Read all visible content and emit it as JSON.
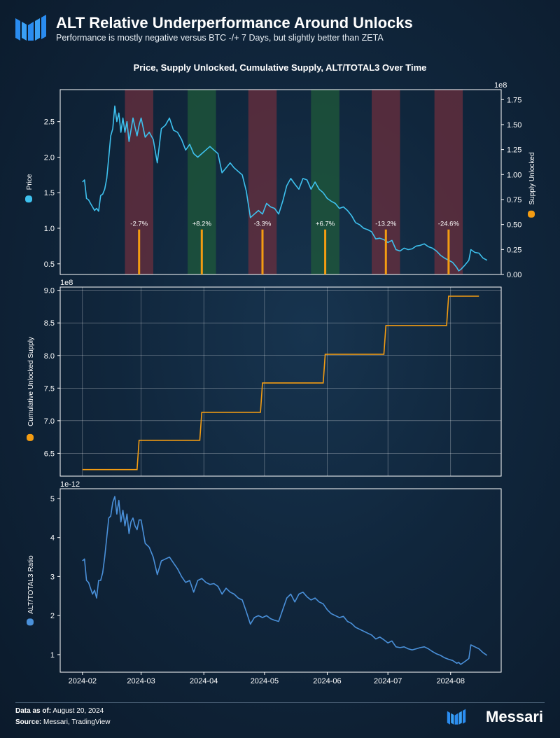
{
  "header": {
    "title": "ALT Relative Underperformance Around Unlocks",
    "subtitle": "Performance is mostly negative versus BTC -/+ 7 Days, but slightly better than ZETA"
  },
  "footer": {
    "data_as_of_label": "Data as of:",
    "data_as_of_value": "August 20, 2024",
    "source_label": "Source:",
    "source_value": "Messari, TradingView",
    "brand": "Messari"
  },
  "colors": {
    "price": "#3ec1ee",
    "supply": "#f39c12",
    "ratio": "#4a90d9",
    "band_red": "#6b2f3d",
    "band_green": "#1f5a3a"
  },
  "chart_data": [
    {
      "type": "line",
      "title": "Price, Supply Unlocked, Cumulative Supply, ALT/TOTAL3 Over Time",
      "ylabel": "Price",
      "y2label": "Supply Unlocked",
      "y2_offset_label": "1e8",
      "ylim": [
        0.35,
        2.95
      ],
      "yticks": [
        0.5,
        1.0,
        1.5,
        2.0,
        2.5
      ],
      "y2lim": [
        0,
        1.85
      ],
      "y2ticks": [
        0.0,
        0.25,
        0.5,
        0.75,
        1.0,
        1.25,
        1.5,
        1.75
      ],
      "xrange": [
        "2024-01-21",
        "2024-08-26"
      ],
      "grid": false,
      "price_series": [
        [
          "2024-02-01",
          1.65
        ],
        [
          "2024-02-02",
          1.68
        ],
        [
          "2024-02-03",
          1.42
        ],
        [
          "2024-02-04",
          1.4
        ],
        [
          "2024-02-05",
          1.35
        ],
        [
          "2024-02-06",
          1.3
        ],
        [
          "2024-02-07",
          1.25
        ],
        [
          "2024-02-08",
          1.28
        ],
        [
          "2024-02-09",
          1.24
        ],
        [
          "2024-02-10",
          1.46
        ],
        [
          "2024-02-11",
          1.48
        ],
        [
          "2024-02-12",
          1.55
        ],
        [
          "2024-02-13",
          1.7
        ],
        [
          "2024-02-14",
          2.0
        ],
        [
          "2024-02-15",
          2.3
        ],
        [
          "2024-02-16",
          2.4
        ],
        [
          "2024-02-17",
          2.72
        ],
        [
          "2024-02-18",
          2.5
        ],
        [
          "2024-02-19",
          2.62
        ],
        [
          "2024-02-20",
          2.35
        ],
        [
          "2024-02-21",
          2.55
        ],
        [
          "2024-02-22",
          2.35
        ],
        [
          "2024-02-23",
          2.5
        ],
        [
          "2024-02-24",
          2.22
        ],
        [
          "2024-02-25",
          2.38
        ],
        [
          "2024-02-26",
          2.55
        ],
        [
          "2024-02-27",
          2.42
        ],
        [
          "2024-02-28",
          2.3
        ],
        [
          "2024-02-29",
          2.45
        ],
        [
          "2024-03-01",
          2.55
        ],
        [
          "2024-03-03",
          2.28
        ],
        [
          "2024-03-05",
          2.35
        ],
        [
          "2024-03-07",
          2.25
        ],
        [
          "2024-03-09",
          1.92
        ],
        [
          "2024-03-11",
          2.4
        ],
        [
          "2024-03-13",
          2.45
        ],
        [
          "2024-03-15",
          2.55
        ],
        [
          "2024-03-17",
          2.38
        ],
        [
          "2024-03-19",
          2.35
        ],
        [
          "2024-03-21",
          2.25
        ],
        [
          "2024-03-23",
          2.1
        ],
        [
          "2024-03-25",
          2.18
        ],
        [
          "2024-03-27",
          2.05
        ],
        [
          "2024-03-29",
          2.0
        ],
        [
          "2024-03-31",
          2.05
        ],
        [
          "2024-04-02",
          2.1
        ],
        [
          "2024-04-04",
          2.15
        ],
        [
          "2024-04-06",
          2.1
        ],
        [
          "2024-04-08",
          2.05
        ],
        [
          "2024-04-10",
          1.78
        ],
        [
          "2024-04-12",
          1.85
        ],
        [
          "2024-04-14",
          1.92
        ],
        [
          "2024-04-16",
          1.85
        ],
        [
          "2024-04-18",
          1.8
        ],
        [
          "2024-04-20",
          1.75
        ],
        [
          "2024-04-22",
          1.52
        ],
        [
          "2024-04-24",
          1.15
        ],
        [
          "2024-04-26",
          1.2
        ],
        [
          "2024-04-28",
          1.25
        ],
        [
          "2024-04-30",
          1.2
        ],
        [
          "2024-05-02",
          1.35
        ],
        [
          "2024-05-04",
          1.3
        ],
        [
          "2024-05-06",
          1.28
        ],
        [
          "2024-05-08",
          1.2
        ],
        [
          "2024-05-10",
          1.38
        ],
        [
          "2024-05-12",
          1.6
        ],
        [
          "2024-05-14",
          1.7
        ],
        [
          "2024-05-16",
          1.62
        ],
        [
          "2024-05-18",
          1.55
        ],
        [
          "2024-05-20",
          1.7
        ],
        [
          "2024-05-22",
          1.68
        ],
        [
          "2024-05-24",
          1.55
        ],
        [
          "2024-05-26",
          1.65
        ],
        [
          "2024-05-28",
          1.55
        ],
        [
          "2024-05-30",
          1.5
        ],
        [
          "2024-06-01",
          1.42
        ],
        [
          "2024-06-03",
          1.38
        ],
        [
          "2024-06-05",
          1.35
        ],
        [
          "2024-06-07",
          1.28
        ],
        [
          "2024-06-09",
          1.3
        ],
        [
          "2024-06-11",
          1.25
        ],
        [
          "2024-06-13",
          1.18
        ],
        [
          "2024-06-15",
          1.08
        ],
        [
          "2024-06-17",
          1.05
        ],
        [
          "2024-06-19",
          1.0
        ],
        [
          "2024-06-21",
          0.98
        ],
        [
          "2024-06-23",
          0.95
        ],
        [
          "2024-06-25",
          0.85
        ],
        [
          "2024-06-27",
          0.86
        ],
        [
          "2024-06-29",
          0.84
        ],
        [
          "2024-07-01",
          0.8
        ],
        [
          "2024-07-03",
          0.83
        ],
        [
          "2024-07-05",
          0.7
        ],
        [
          "2024-07-07",
          0.68
        ],
        [
          "2024-07-09",
          0.72
        ],
        [
          "2024-07-11",
          0.7
        ],
        [
          "2024-07-13",
          0.71
        ],
        [
          "2024-07-15",
          0.75
        ],
        [
          "2024-07-17",
          0.76
        ],
        [
          "2024-07-19",
          0.78
        ],
        [
          "2024-07-21",
          0.74
        ],
        [
          "2024-07-23",
          0.72
        ],
        [
          "2024-07-25",
          0.68
        ],
        [
          "2024-07-27",
          0.62
        ],
        [
          "2024-07-29",
          0.58
        ],
        [
          "2024-07-31",
          0.55
        ],
        [
          "2024-08-02",
          0.52
        ],
        [
          "2024-08-04",
          0.45
        ],
        [
          "2024-08-05",
          0.4
        ],
        [
          "2024-08-06",
          0.42
        ],
        [
          "2024-08-08",
          0.48
        ],
        [
          "2024-08-10",
          0.55
        ],
        [
          "2024-08-11",
          0.7
        ],
        [
          "2024-08-13",
          0.66
        ],
        [
          "2024-08-15",
          0.65
        ],
        [
          "2024-08-17",
          0.58
        ],
        [
          "2024-08-19",
          0.55
        ]
      ],
      "unlock_bars": [
        {
          "date": "2024-02-29",
          "value": 0.45
        },
        {
          "date": "2024-03-31",
          "value": 0.45
        },
        {
          "date": "2024-04-30",
          "value": 0.45
        },
        {
          "date": "2024-05-31",
          "value": 0.45
        },
        {
          "date": "2024-06-30",
          "value": 0.45
        },
        {
          "date": "2024-07-31",
          "value": 0.45
        }
      ],
      "windows": [
        {
          "start": "2024-02-22",
          "end": "2024-03-07",
          "color": "red",
          "label": "-2.7%"
        },
        {
          "start": "2024-03-24",
          "end": "2024-04-07",
          "color": "green",
          "label": "+8.2%"
        },
        {
          "start": "2024-04-23",
          "end": "2024-05-07",
          "color": "red",
          "label": "-3.3%"
        },
        {
          "start": "2024-05-24",
          "end": "2024-06-07",
          "color": "green",
          "label": "+6.7%"
        },
        {
          "start": "2024-06-23",
          "end": "2024-07-07",
          "color": "red",
          "label": "-13.2%"
        },
        {
          "start": "2024-07-24",
          "end": "2024-08-07",
          "color": "red",
          "label": "-24.6%"
        }
      ]
    },
    {
      "type": "line",
      "ylabel": "Cumulative Unlocked Supply",
      "offset_label": "1e8",
      "ylim": [
        6.15,
        9.05
      ],
      "yticks": [
        6.5,
        7.0,
        7.5,
        8.0,
        8.5,
        9.0
      ],
      "grid": true,
      "series": [
        [
          "2024-02-01",
          6.25
        ],
        [
          "2024-02-28",
          6.25
        ],
        [
          "2024-02-29",
          6.7
        ],
        [
          "2024-03-30",
          6.7
        ],
        [
          "2024-03-31",
          7.13
        ],
        [
          "2024-04-29",
          7.13
        ],
        [
          "2024-04-30",
          7.58
        ],
        [
          "2024-05-30",
          7.58
        ],
        [
          "2024-05-31",
          8.02
        ],
        [
          "2024-06-29",
          8.02
        ],
        [
          "2024-06-30",
          8.46
        ],
        [
          "2024-07-30",
          8.46
        ],
        [
          "2024-07-31",
          8.91
        ],
        [
          "2024-08-15",
          8.91
        ]
      ]
    },
    {
      "type": "line",
      "ylabel": "ALT/TOTAL3 Ratio",
      "offset_label": "1e-12",
      "ylim": [
        0.55,
        5.25
      ],
      "yticks": [
        1,
        2,
        3,
        4,
        5
      ],
      "xticks": [
        "2024-02",
        "2024-03",
        "2024-04",
        "2024-05",
        "2024-06",
        "2024-07",
        "2024-08"
      ],
      "grid": false,
      "series": [
        [
          "2024-02-01",
          3.4
        ],
        [
          "2024-02-02",
          3.45
        ],
        [
          "2024-02-03",
          2.9
        ],
        [
          "2024-02-04",
          2.85
        ],
        [
          "2024-02-05",
          2.7
        ],
        [
          "2024-02-06",
          2.55
        ],
        [
          "2024-02-07",
          2.65
        ],
        [
          "2024-02-08",
          2.45
        ],
        [
          "2024-02-09",
          2.9
        ],
        [
          "2024-02-10",
          2.9
        ],
        [
          "2024-02-11",
          3.1
        ],
        [
          "2024-02-12",
          3.5
        ],
        [
          "2024-02-13",
          4.0
        ],
        [
          "2024-02-14",
          4.5
        ],
        [
          "2024-02-15",
          4.55
        ],
        [
          "2024-02-16",
          4.9
        ],
        [
          "2024-02-17",
          5.05
        ],
        [
          "2024-02-18",
          4.6
        ],
        [
          "2024-02-19",
          4.95
        ],
        [
          "2024-02-20",
          4.4
        ],
        [
          "2024-02-21",
          4.7
        ],
        [
          "2024-02-22",
          4.3
        ],
        [
          "2024-02-23",
          4.6
        ],
        [
          "2024-02-24",
          4.1
        ],
        [
          "2024-02-25",
          4.4
        ],
        [
          "2024-02-26",
          4.5
        ],
        [
          "2024-02-27",
          4.3
        ],
        [
          "2024-02-28",
          4.2
        ],
        [
          "2024-02-29",
          4.45
        ],
        [
          "2024-03-01",
          4.45
        ],
        [
          "2024-03-03",
          3.85
        ],
        [
          "2024-03-05",
          3.75
        ],
        [
          "2024-03-07",
          3.5
        ],
        [
          "2024-03-09",
          3.05
        ],
        [
          "2024-03-11",
          3.4
        ],
        [
          "2024-03-13",
          3.45
        ],
        [
          "2024-03-15",
          3.5
        ],
        [
          "2024-03-17",
          3.35
        ],
        [
          "2024-03-19",
          3.2
        ],
        [
          "2024-03-21",
          3.0
        ],
        [
          "2024-03-23",
          2.85
        ],
        [
          "2024-03-25",
          2.9
        ],
        [
          "2024-03-27",
          2.6
        ],
        [
          "2024-03-29",
          2.9
        ],
        [
          "2024-03-31",
          2.95
        ],
        [
          "2024-04-02",
          2.85
        ],
        [
          "2024-04-04",
          2.8
        ],
        [
          "2024-04-06",
          2.82
        ],
        [
          "2024-04-08",
          2.75
        ],
        [
          "2024-04-10",
          2.55
        ],
        [
          "2024-04-12",
          2.7
        ],
        [
          "2024-04-14",
          2.6
        ],
        [
          "2024-04-16",
          2.55
        ],
        [
          "2024-04-18",
          2.45
        ],
        [
          "2024-04-20",
          2.4
        ],
        [
          "2024-04-22",
          2.1
        ],
        [
          "2024-04-24",
          1.78
        ],
        [
          "2024-04-26",
          1.95
        ],
        [
          "2024-04-28",
          2.0
        ],
        [
          "2024-04-30",
          1.95
        ],
        [
          "2024-05-02",
          2.0
        ],
        [
          "2024-05-04",
          1.92
        ],
        [
          "2024-05-06",
          1.88
        ],
        [
          "2024-05-08",
          1.85
        ],
        [
          "2024-05-10",
          2.15
        ],
        [
          "2024-05-12",
          2.45
        ],
        [
          "2024-05-14",
          2.55
        ],
        [
          "2024-05-16",
          2.35
        ],
        [
          "2024-05-18",
          2.55
        ],
        [
          "2024-05-20",
          2.6
        ],
        [
          "2024-05-22",
          2.48
        ],
        [
          "2024-05-24",
          2.4
        ],
        [
          "2024-05-26",
          2.45
        ],
        [
          "2024-05-28",
          2.35
        ],
        [
          "2024-05-30",
          2.3
        ],
        [
          "2024-06-01",
          2.15
        ],
        [
          "2024-06-03",
          2.05
        ],
        [
          "2024-06-05",
          2.0
        ],
        [
          "2024-06-07",
          1.95
        ],
        [
          "2024-06-09",
          1.98
        ],
        [
          "2024-06-11",
          1.85
        ],
        [
          "2024-06-13",
          1.8
        ],
        [
          "2024-06-15",
          1.7
        ],
        [
          "2024-06-17",
          1.65
        ],
        [
          "2024-06-19",
          1.6
        ],
        [
          "2024-06-21",
          1.55
        ],
        [
          "2024-06-23",
          1.5
        ],
        [
          "2024-06-25",
          1.4
        ],
        [
          "2024-06-27",
          1.45
        ],
        [
          "2024-06-29",
          1.38
        ],
        [
          "2024-07-01",
          1.3
        ],
        [
          "2024-07-03",
          1.35
        ],
        [
          "2024-07-05",
          1.2
        ],
        [
          "2024-07-07",
          1.18
        ],
        [
          "2024-07-09",
          1.2
        ],
        [
          "2024-07-11",
          1.15
        ],
        [
          "2024-07-13",
          1.12
        ],
        [
          "2024-07-15",
          1.15
        ],
        [
          "2024-07-17",
          1.18
        ],
        [
          "2024-07-19",
          1.2
        ],
        [
          "2024-07-21",
          1.15
        ],
        [
          "2024-07-23",
          1.08
        ],
        [
          "2024-07-25",
          1.02
        ],
        [
          "2024-07-27",
          0.98
        ],
        [
          "2024-07-29",
          0.92
        ],
        [
          "2024-07-31",
          0.88
        ],
        [
          "2024-08-02",
          0.85
        ],
        [
          "2024-08-04",
          0.78
        ],
        [
          "2024-08-05",
          0.8
        ],
        [
          "2024-08-06",
          0.75
        ],
        [
          "2024-08-08",
          0.82
        ],
        [
          "2024-08-10",
          0.9
        ],
        [
          "2024-08-11",
          1.25
        ],
        [
          "2024-08-13",
          1.2
        ],
        [
          "2024-08-15",
          1.15
        ],
        [
          "2024-08-17",
          1.05
        ],
        [
          "2024-08-19",
          0.98
        ]
      ]
    }
  ]
}
